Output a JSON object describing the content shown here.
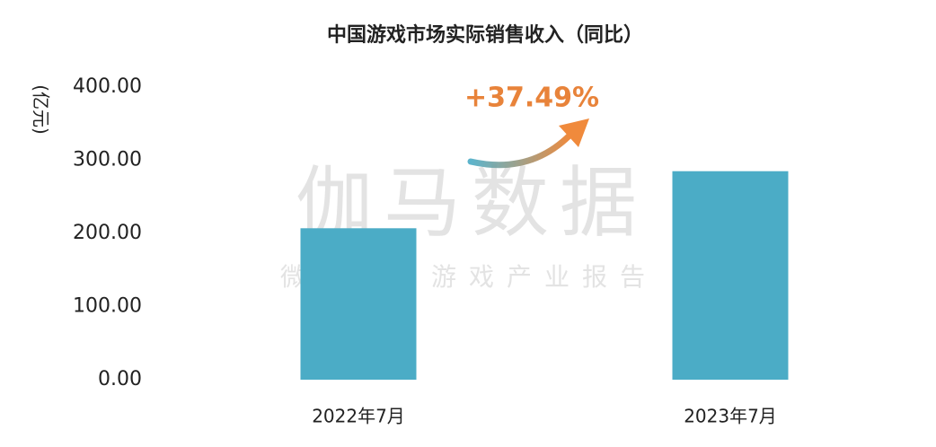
{
  "chart_data": {
    "type": "bar",
    "title": "中国游戏市场实际销售收入（同比）",
    "y_label": "(亿元)",
    "categories": [
      "2022年7月",
      "2023年7月"
    ],
    "values": [
      207,
      285
    ],
    "color": "#4bacc6",
    "ylim": [
      0,
      400
    ],
    "yticks": [
      {
        "value": 0,
        "label": "0.00"
      },
      {
        "value": 100,
        "label": "100.00"
      },
      {
        "value": 200,
        "label": "200.00"
      },
      {
        "value": 300,
        "label": "300.00"
      },
      {
        "value": 400,
        "label": "400.00"
      }
    ],
    "grid": false,
    "annotation": "+37.49%",
    "watermark": "伽马数据",
    "watermark_subtitle": "微信号：游戏产业报告"
  }
}
